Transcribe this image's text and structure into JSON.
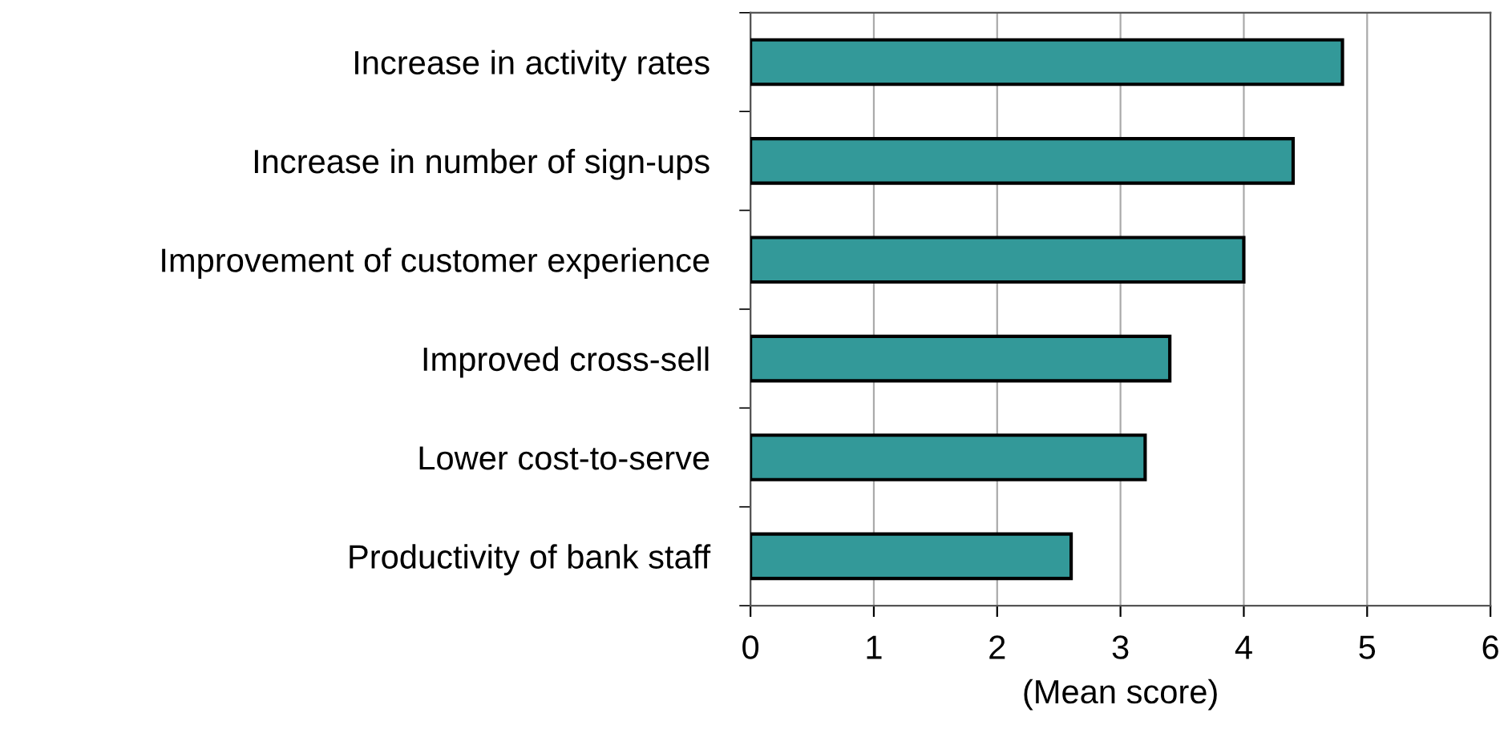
{
  "chart_data": {
    "type": "bar",
    "orientation": "horizontal",
    "xlabel": "(Mean score)",
    "categories": [
      "Increase in activity rates",
      "Increase in number of sign-ups",
      "Improvement of customer experience",
      "Improved cross-sell",
      "Lower cost-to-serve",
      "Productivity of bank staff"
    ],
    "values": [
      4.8,
      4.4,
      4.0,
      3.4,
      3.2,
      2.6
    ],
    "color": "#339999",
    "xlim": [
      0,
      6
    ],
    "xticks": [
      0,
      1,
      2,
      3,
      4,
      5,
      6
    ],
    "grid": "x"
  }
}
